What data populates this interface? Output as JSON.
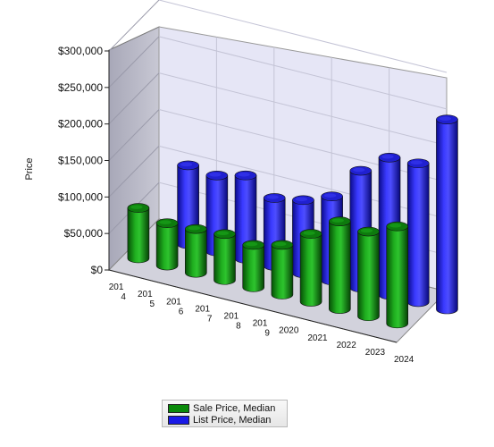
{
  "chart_data": {
    "type": "bar",
    "style": "3d-cylinder",
    "title": "",
    "ylabel": "Price",
    "xlabel": "",
    "ylim": [
      0,
      300000
    ],
    "yticks": [
      0,
      50000,
      100000,
      150000,
      200000,
      250000,
      300000
    ],
    "ytick_labels": [
      "$0",
      "$50,000",
      "$100,000",
      "$150,000",
      "$200,000",
      "$250,000",
      "$300,000"
    ],
    "categories": [
      "2014",
      "2015",
      "2016",
      "2017",
      "2018",
      "2019",
      "2020",
      "2021",
      "2022",
      "2023",
      "2024"
    ],
    "category_labels": [
      [
        "201",
        "4"
      ],
      [
        "201",
        "5"
      ],
      [
        "201",
        "6"
      ],
      [
        "201",
        "7"
      ],
      [
        "201",
        "8"
      ],
      [
        "201",
        "9"
      ],
      [
        "2020"
      ],
      [
        "2021"
      ],
      [
        "2022"
      ],
      [
        "2023"
      ],
      [
        "2024"
      ]
    ],
    "series": [
      {
        "name": "Sale Price, Median",
        "color": "#0a8a0a",
        "values": [
          69000,
          58000,
          60000,
          63000,
          58000,
          68000,
          93000,
          120000,
          116000,
          133000,
          null
        ]
      },
      {
        "name": "List Price, Median",
        "color": "#1a1ae6",
        "values": [
          null,
          108000,
          104000,
          114000,
          93000,
          100000,
          115000,
          160000,
          188000,
          190000,
          260000
        ]
      }
    ],
    "legend_position": "bottom",
    "grid": true
  },
  "legend": {
    "items": [
      {
        "label": "Sale Price, Median",
        "color": "#0a8a0a"
      },
      {
        "label": "List Price, Median",
        "color": "#1a1ae6"
      }
    ]
  }
}
